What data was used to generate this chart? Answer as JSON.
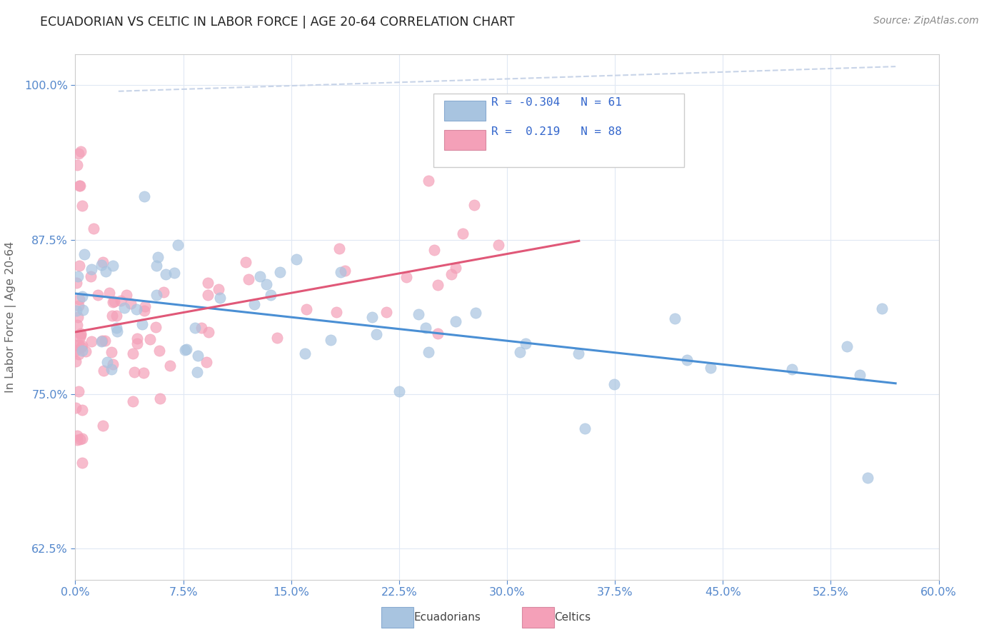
{
  "title": "ECUADORIAN VS CELTIC IN LABOR FORCE | AGE 20-64 CORRELATION CHART",
  "source_text": "Source: ZipAtlas.com",
  "xmin": 0.0,
  "xmax": 60.0,
  "ymin": 60.0,
  "ymax": 102.5,
  "ylabel_ticks": [
    62.5,
    75.0,
    87.5,
    100.0
  ],
  "xticks": [
    0,
    7.5,
    15,
    22.5,
    30,
    37.5,
    45,
    52.5,
    60
  ],
  "legend_blue_R": "-0.304",
  "legend_blue_N": "61",
  "legend_pink_R": "0.219",
  "legend_pink_N": "88",
  "blue_scatter_color": "#a8c4e0",
  "pink_scatter_color": "#f4a0b8",
  "blue_line_color": "#4a8fd4",
  "pink_line_color": "#e05878",
  "diag_line_color": "#c8d4e8",
  "tick_color": "#5588cc",
  "grid_color": "#e0e8f4",
  "legend_text_color": "#3366cc",
  "axis_label_color": "#666666",
  "title_color": "#222222",
  "source_color": "#888888",
  "axis_label": "In Labor Force | Age 20-64",
  "blue_scatter_seed": 42,
  "pink_scatter_seed": 7
}
